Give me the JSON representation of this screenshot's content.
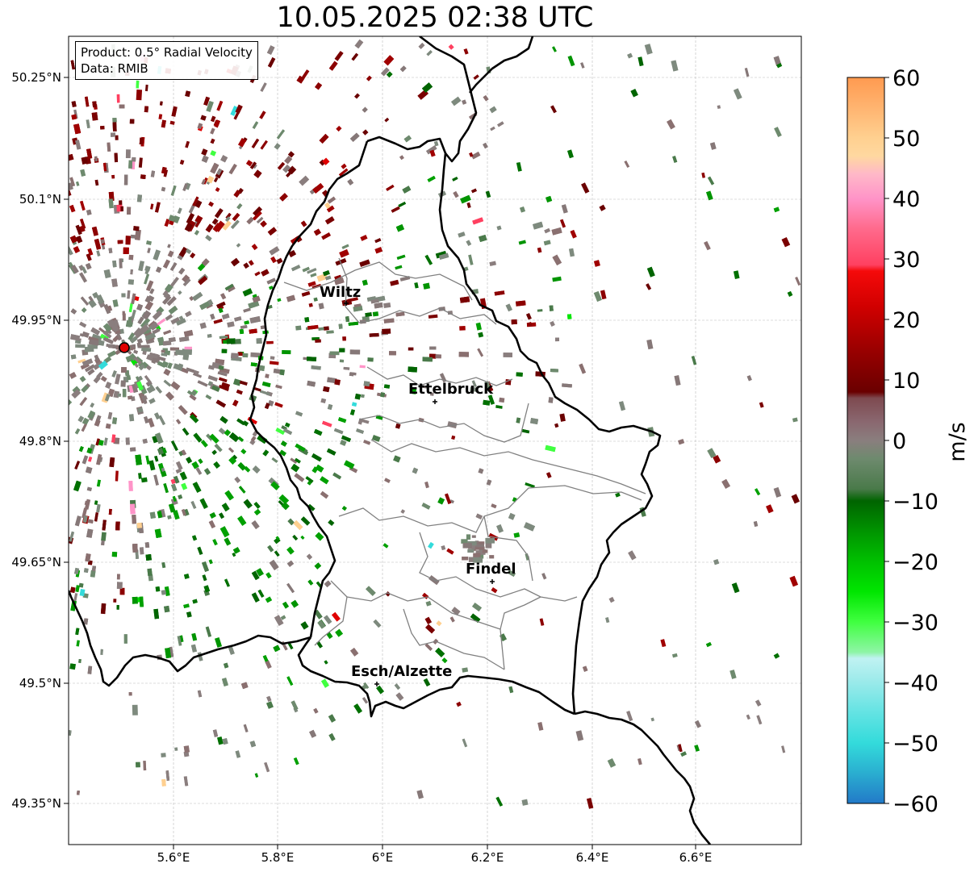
{
  "title": "10.05.2025 02:38 UTC",
  "info": {
    "product": "Product: 0.5° Radial Velocity",
    "data": "Data: RMIB"
  },
  "axes": {
    "x_ticks": [
      "5.6°E",
      "5.8°E",
      "6°E",
      "6.2°E",
      "6.4°E",
      "6.6°E"
    ],
    "y_ticks": [
      "50.25°N",
      "50.1°N",
      "49.95°N",
      "49.8°N",
      "49.65°N",
      "49.5°N",
      "49.35°N"
    ]
  },
  "cities": [
    {
      "name": "Wiltz"
    },
    {
      "name": "Ettelbruck"
    },
    {
      "name": "Findel"
    },
    {
      "name": "Esch/Alzette"
    }
  ],
  "colorbar": {
    "label": "m/s",
    "ticks": [
      "60",
      "50",
      "40",
      "30",
      "20",
      "10",
      "0",
      "−10",
      "−20",
      "−30",
      "−40",
      "−50",
      "−60"
    ],
    "range": [
      -60,
      60
    ],
    "stops": [
      {
        "v": -60,
        "c": "#2279c8"
      },
      {
        "v": -55,
        "c": "#2aaed0"
      },
      {
        "v": -50,
        "c": "#33dbdb"
      },
      {
        "v": -45,
        "c": "#63e3e3"
      },
      {
        "v": -40,
        "c": "#9aeaea"
      },
      {
        "v": -36,
        "c": "#c0f2f2"
      },
      {
        "v": -35,
        "c": "#8ef5a6"
      },
      {
        "v": -30,
        "c": "#40ff40"
      },
      {
        "v": -25,
        "c": "#00e600"
      },
      {
        "v": -20,
        "c": "#00c000"
      },
      {
        "v": -15,
        "c": "#009400"
      },
      {
        "v": -10,
        "c": "#006400"
      },
      {
        "v": -8,
        "c": "#4a7a4a"
      },
      {
        "v": -3,
        "c": "#6e8a6e"
      },
      {
        "v": 0,
        "c": "#8a7e7e"
      },
      {
        "v": 3,
        "c": "#8a6870"
      },
      {
        "v": 7,
        "c": "#7e4a50"
      },
      {
        "v": 8,
        "c": "#6a0000"
      },
      {
        "v": 15,
        "c": "#9a0000"
      },
      {
        "v": 22,
        "c": "#d00000"
      },
      {
        "v": 28,
        "c": "#f50a0a"
      },
      {
        "v": 29,
        "c": "#ff4060"
      },
      {
        "v": 35,
        "c": "#ff6a8c"
      },
      {
        "v": 40,
        "c": "#ff94c8"
      },
      {
        "v": 44,
        "c": "#ffb8c8"
      },
      {
        "v": 47,
        "c": "#ffd8a0"
      },
      {
        "v": 50,
        "c": "#ffd090"
      },
      {
        "v": 55,
        "c": "#ffb470"
      },
      {
        "v": 60,
        "c": "#ff9a50"
      }
    ]
  },
  "radar_site": {
    "color": "#e00000"
  },
  "map_style": {
    "country_border": "#000000",
    "canton_border": "#808080",
    "grid": "#bbbbbb"
  }
}
